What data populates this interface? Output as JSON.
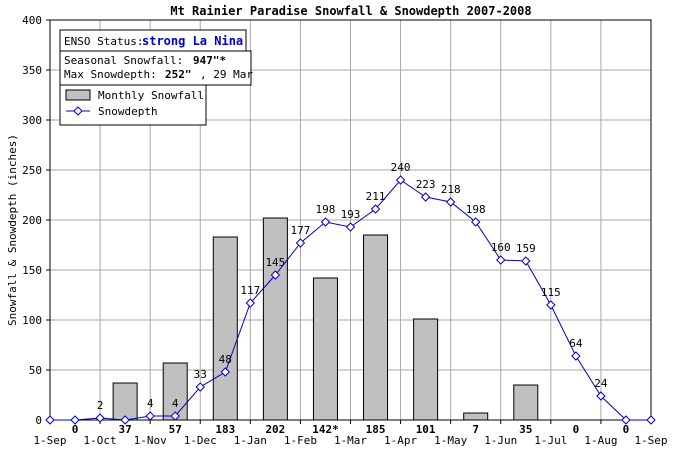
{
  "chart_data": {
    "type": "bar+line",
    "title": "Mt Rainier Paradise Snowfall & Snowdepth 2007-2008",
    "ylabel": "Snowfall & Snowdepth (inches)",
    "xlabel": "",
    "ylim": [
      0,
      400
    ],
    "yticks": [
      0,
      50,
      100,
      150,
      200,
      250,
      300,
      350,
      400
    ],
    "grid": true,
    "legend_position": "top-left",
    "x_tick_labels": [
      "1-Sep",
      "1-Oct",
      "1-Nov",
      "1-Dec",
      "1-Jan",
      "1-Feb",
      "1-Mar",
      "1-Apr",
      "1-May",
      "1-Jun",
      "1-Jul",
      "1-Aug",
      "1-Sep"
    ],
    "info": {
      "enso_label": "ENSO Status:",
      "enso_value": "strong La Nina",
      "snowfall_label": "Seasonal Snowfall:",
      "snowfall_value": "947\"*",
      "depth_label": "Max Snowdepth:",
      "depth_value": "252\"",
      "depth_date": ", 29 Mar"
    },
    "series": [
      {
        "name": "Monthly Snowfall",
        "type": "bar",
        "color": "#c0c0c0",
        "months": [
          "Sep",
          "Oct",
          "Nov",
          "Dec",
          "Jan",
          "Feb",
          "Mar",
          "Apr",
          "May",
          "Jun",
          "Jul",
          "Aug"
        ],
        "values": [
          0,
          37,
          57,
          183,
          202,
          142,
          185,
          101,
          7,
          35,
          0,
          0
        ],
        "labels": [
          "0",
          "37",
          "57",
          "183",
          "202",
          "142*",
          "185",
          "101",
          "7",
          "35",
          "0",
          "0"
        ]
      },
      {
        "name": "Snowdepth",
        "type": "line",
        "color": "#0000cc",
        "x_months": [
          0,
          0.5,
          1,
          1.5,
          2,
          2.5,
          3,
          3.5,
          4,
          4.5,
          5,
          5.5,
          6,
          6.5,
          7,
          7.5,
          8,
          8.5,
          9,
          9.5,
          10,
          10.5,
          11,
          11.5,
          12
        ],
        "values": [
          0,
          0,
          2,
          0,
          4,
          4,
          33,
          48,
          117,
          145,
          177,
          198,
          193,
          211,
          240,
          223,
          218,
          198,
          160,
          159,
          115,
          64,
          24,
          0,
          0
        ],
        "labels": [
          "",
          "",
          "2",
          "",
          "4",
          "4",
          "33",
          "48",
          "117",
          "145",
          "177",
          "198",
          "193",
          "211",
          "240",
          "223",
          "218",
          "198",
          "160",
          "159",
          "115",
          "64",
          "24",
          "",
          ""
        ]
      }
    ]
  }
}
